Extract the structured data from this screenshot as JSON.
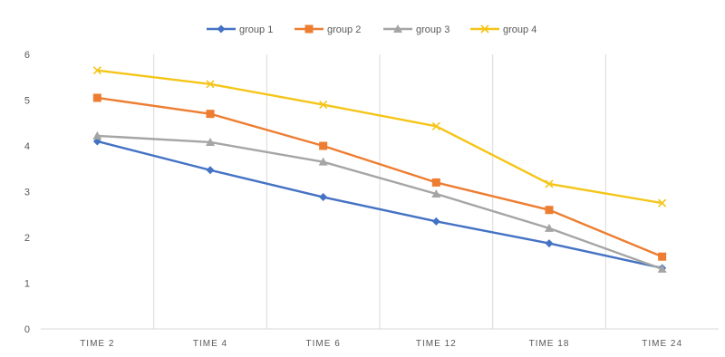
{
  "chart_data": {
    "type": "line",
    "title": "",
    "xlabel": "",
    "ylabel": "",
    "categories": [
      "TIME 2",
      "TIME 4",
      "TIME 6",
      "TIME 12",
      "TIME 18",
      "TIME 24"
    ],
    "ylim": [
      0,
      6
    ],
    "yticks": [
      0,
      1,
      2,
      3,
      4,
      5,
      6
    ],
    "grid": "vertical",
    "legend": "top",
    "series": [
      {
        "name": "group 1",
        "color": "#4472c4",
        "marker": "diamond",
        "values": [
          4.1,
          3.47,
          2.88,
          2.35,
          1.87,
          1.33
        ]
      },
      {
        "name": "group 2",
        "color": "#ed7d31",
        "marker": "square",
        "values": [
          5.05,
          4.7,
          4.0,
          3.2,
          2.6,
          1.58
        ]
      },
      {
        "name": "group 3",
        "color": "#a5a5a5",
        "marker": "triangle",
        "values": [
          4.22,
          4.08,
          3.65,
          2.95,
          2.2,
          1.31
        ]
      },
      {
        "name": "group 4",
        "color": "#f5c518",
        "marker": "x",
        "values": [
          5.65,
          5.35,
          4.9,
          4.43,
          3.17,
          2.75
        ]
      }
    ]
  }
}
